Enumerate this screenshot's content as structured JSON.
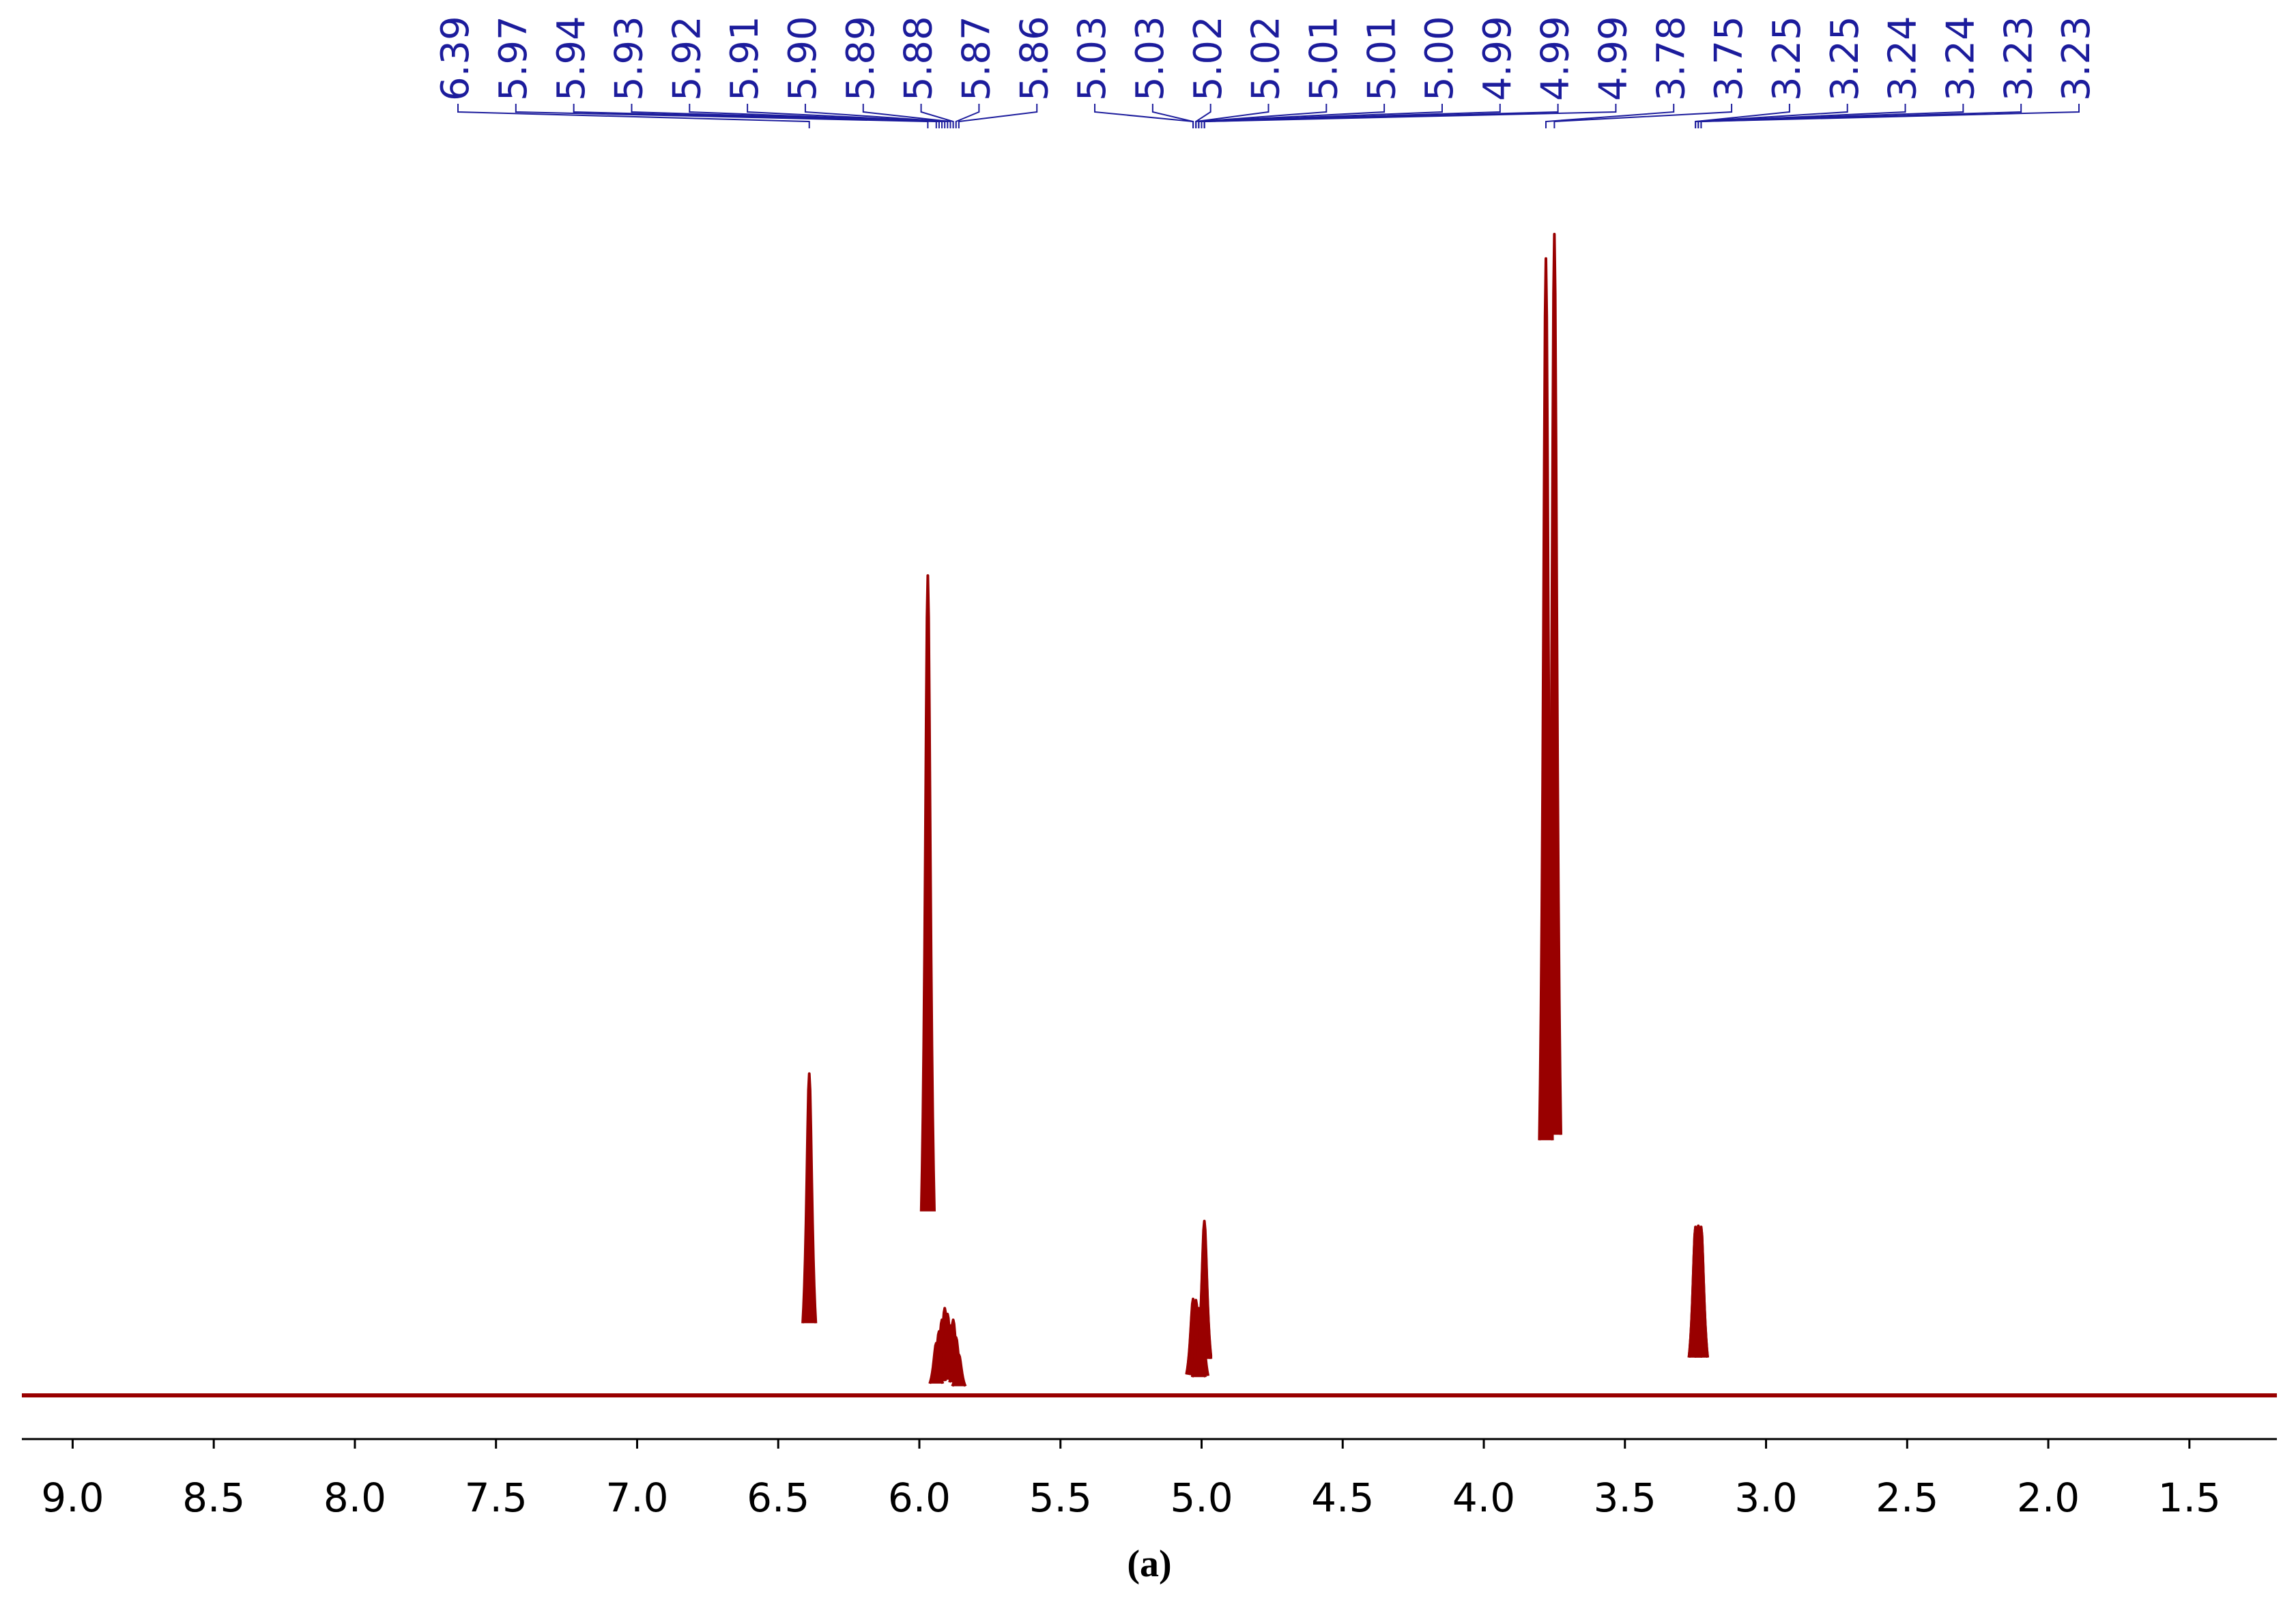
{
  "chart_data": {
    "type": "spectrum",
    "caption": "(a)",
    "x": [
      6.39,
      5.97,
      5.94,
      5.93,
      5.92,
      5.91,
      5.9,
      5.89,
      5.88,
      5.87,
      5.86,
      5.03,
      5.03,
      5.02,
      5.02,
      5.01,
      5.01,
      5.0,
      4.99,
      4.99,
      4.99,
      3.78,
      3.75,
      3.25,
      3.25,
      3.24,
      3.24,
      3.23,
      3.23
    ],
    "peak_labels": [
      6.39,
      5.97,
      5.94,
      5.93,
      5.92,
      5.91,
      {
        "value": 5.9,
        "label": "5.90"
      },
      5.89,
      5.88,
      5.87,
      5.86,
      5.03,
      5.03,
      5.02,
      5.02,
      5.01,
      5.01,
      {
        "value": 5.0,
        "label": "5.00"
      },
      4.99,
      4.99,
      4.99,
      3.78,
      3.75,
      3.25,
      3.25,
      3.24,
      3.24,
      3.23,
      3.23
    ],
    "values": [
      27.7,
      70.6,
      4.5,
      5.5,
      6.5,
      7.5,
      7.0,
      6.0,
      6.5,
      5.0,
      3.5,
      8.0,
      8.3,
      7.8,
      8.2,
      7.5,
      7.0,
      7.5,
      15.0,
      14.5,
      14.0,
      97.9,
      100,
      14.5,
      14.5,
      14.6,
      14.6,
      14.5,
      14.5
    ],
    "color": "#990000",
    "peak_label_color": "#1c1c9c",
    "xlim": [
      9.18,
      1.19
    ],
    "ylim": [
      0,
      100
    ],
    "xticks": [
      {
        "value": 9,
        "label": "9.0"
      },
      8.5,
      {
        "value": 8,
        "label": "8.0"
      },
      7.5,
      {
        "value": 7,
        "label": "7.0"
      },
      6.5,
      {
        "value": 6,
        "label": "6.0"
      },
      5.5,
      {
        "value": 5,
        "label": "5.0"
      },
      4.5,
      {
        "value": 4,
        "label": "4.0"
      },
      3.5,
      {
        "value": 3,
        "label": "3.0"
      },
      2.5,
      {
        "value": 2,
        "label": "2.0"
      },
      1.5
    ]
  }
}
